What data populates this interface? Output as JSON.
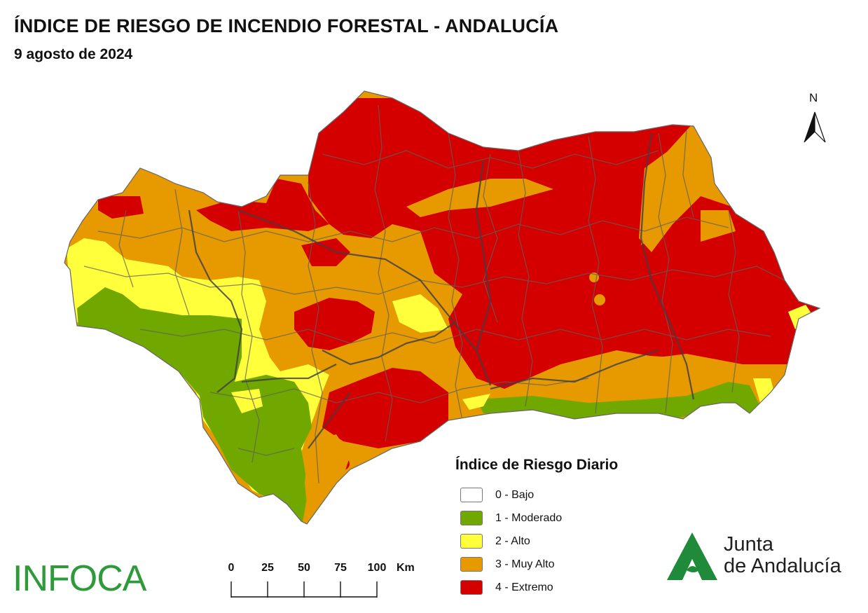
{
  "header": {
    "title": "ÍNDICE DE RIESGO DE INCENDIO FORESTAL - ANDALUCÍA",
    "date": "9 agosto de 2024"
  },
  "north_arrow": {
    "label": "N"
  },
  "legend": {
    "title": "Índice de Riesgo Diario",
    "items": [
      {
        "label": "0 - Bajo",
        "color": "#ffffff"
      },
      {
        "label": "1 - Moderado",
        "color": "#70a800"
      },
      {
        "label": "2 - Alto",
        "color": "#ffff3c"
      },
      {
        "label": "3 - Muy Alto",
        "color": "#e69a00"
      },
      {
        "label": "4 - Extremo",
        "color": "#d40000"
      }
    ]
  },
  "scale_bar": {
    "ticks": [
      "0",
      "25",
      "50",
      "75",
      "100"
    ],
    "unit": "Km"
  },
  "logos": {
    "infoca": "INFOCA",
    "junta_line1": "Junta",
    "junta_line2": "de Andalucía"
  }
}
